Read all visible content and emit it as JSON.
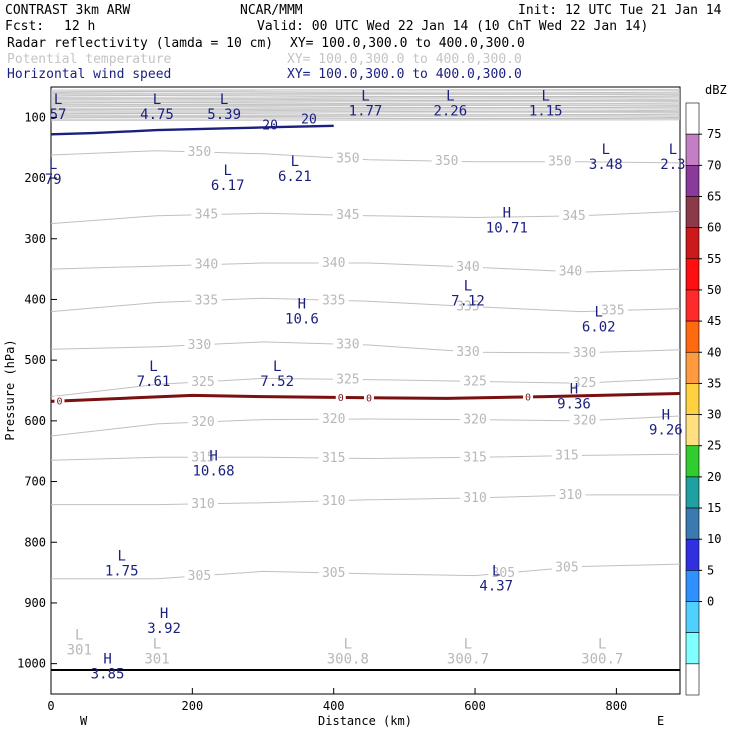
{
  "header": {
    "model": "CONTRAST  3km ARW",
    "org": "NCAR/MMM",
    "init": "Init: 12 UTC Tue 21 Jan 14",
    "fcst_label": "Fcst:",
    "fcst_value": "12 h",
    "valid": "Valid: 00 UTC Wed 22 Jan 14 (10 ChT Wed 22 Jan 14)",
    "fields": [
      {
        "name": "Radar reflectivity (lamda = 10 cm)",
        "xy": "XY= 100.0,300.0 to 400.0,300.0",
        "color": "#000000"
      },
      {
        "name": "Potential temperature",
        "xy": "XY= 100.0,300.0 to 400.0,300.0",
        "color": "#c4c4c4"
      },
      {
        "name": "Horizontal wind speed",
        "xy": "XY= 100.0,300.0 to 400.0,300.0",
        "color": "#1a1f80"
      }
    ]
  },
  "chart_data": {
    "type": "cross-section",
    "xlabel": "Distance (km)",
    "ylabel": "Pressure (hPa)",
    "xlim": [
      0,
      890
    ],
    "ylim": [
      1050,
      50
    ],
    "x_ticks": [
      "0",
      "200",
      "400",
      "600",
      "800"
    ],
    "x_tick_values": [
      0,
      200,
      400,
      600,
      800
    ],
    "y_ticks": [
      "100",
      "200",
      "300",
      "400",
      "500",
      "600",
      "700",
      "800",
      "900",
      "1000"
    ],
    "y_tick_values": [
      100,
      200,
      300,
      400,
      500,
      600,
      700,
      800,
      900,
      1000
    ],
    "x_end_labels": {
      "west": "W",
      "east": "E"
    },
    "theta_contours": [
      {
        "value": 350,
        "labels": [
          "350",
          "350",
          "350",
          "350"
        ],
        "label_x": [
          210,
          420,
          560,
          720
        ],
        "points": [
          [
            0,
            162
          ],
          [
            150,
            155
          ],
          [
            300,
            160
          ],
          [
            450,
            170
          ],
          [
            600,
            173
          ],
          [
            750,
            173
          ],
          [
            890,
            175
          ]
        ]
      },
      {
        "value": 345,
        "labels": [
          "345",
          "345",
          "345"
        ],
        "label_x": [
          220,
          420,
          740
        ],
        "points": [
          [
            0,
            275
          ],
          [
            150,
            262
          ],
          [
            300,
            258
          ],
          [
            450,
            262
          ],
          [
            600,
            265
          ],
          [
            750,
            262
          ],
          [
            890,
            255
          ]
        ]
      },
      {
        "value": 340,
        "labels": [
          "340",
          "340",
          "340",
          "340"
        ],
        "label_x": [
          220,
          400,
          590,
          735
        ],
        "points": [
          [
            0,
            350
          ],
          [
            150,
            345
          ],
          [
            300,
            340
          ],
          [
            450,
            340
          ],
          [
            600,
            347
          ],
          [
            750,
            355
          ],
          [
            890,
            350
          ]
        ]
      },
      {
        "value": 335,
        "labels": [
          "335",
          "335",
          "335",
          "335"
        ],
        "label_x": [
          220,
          400,
          590,
          795
        ],
        "points": [
          [
            0,
            420
          ],
          [
            150,
            405
          ],
          [
            300,
            398
          ],
          [
            450,
            403
          ],
          [
            600,
            412
          ],
          [
            750,
            420
          ],
          [
            890,
            415
          ]
        ]
      },
      {
        "value": 330,
        "labels": [
          "330",
          "330",
          "330",
          "330"
        ],
        "label_x": [
          210,
          420,
          590,
          755
        ],
        "points": [
          [
            0,
            482
          ],
          [
            150,
            478
          ],
          [
            300,
            470
          ],
          [
            450,
            475
          ],
          [
            600,
            487
          ],
          [
            750,
            488
          ],
          [
            890,
            483
          ]
        ]
      },
      {
        "value": 325,
        "labels": [
          "325",
          "325",
          "325",
          "325"
        ],
        "label_x": [
          215,
          420,
          600,
          755
        ],
        "points": [
          [
            0,
            560
          ],
          [
            150,
            540
          ],
          [
            300,
            530
          ],
          [
            450,
            532
          ],
          [
            600,
            535
          ],
          [
            750,
            538
          ],
          [
            890,
            530
          ]
        ]
      },
      {
        "value": 320,
        "labels": [
          "320",
          "320",
          "320",
          "320"
        ],
        "label_x": [
          215,
          400,
          600,
          755
        ],
        "points": [
          [
            0,
            625
          ],
          [
            150,
            605
          ],
          [
            300,
            598
          ],
          [
            450,
            597
          ],
          [
            600,
            598
          ],
          [
            750,
            600
          ],
          [
            890,
            592
          ]
        ]
      },
      {
        "value": 315,
        "labels": [
          "315",
          "315",
          "315",
          "315"
        ],
        "label_x": [
          215,
          400,
          600,
          730
        ],
        "points": [
          [
            0,
            665
          ],
          [
            150,
            660
          ],
          [
            300,
            660
          ],
          [
            450,
            662
          ],
          [
            600,
            660
          ],
          [
            750,
            657
          ],
          [
            890,
            655
          ]
        ]
      },
      {
        "value": 310,
        "labels": [
          "310",
          "310",
          "310",
          "310"
        ],
        "label_x": [
          215,
          400,
          600,
          735
        ],
        "points": [
          [
            0,
            738
          ],
          [
            150,
            738
          ],
          [
            300,
            735
          ],
          [
            450,
            730
          ],
          [
            600,
            727
          ],
          [
            750,
            722
          ],
          [
            890,
            722
          ]
        ]
      },
      {
        "value": 305,
        "labels": [
          "305",
          "305",
          "305",
          "305"
        ],
        "label_x": [
          210,
          400,
          640,
          730
        ],
        "points": [
          [
            0,
            860
          ],
          [
            150,
            860
          ],
          [
            300,
            848
          ],
          [
            450,
            852
          ],
          [
            600,
            855
          ],
          [
            750,
            840
          ],
          [
            890,
            836
          ]
        ]
      }
    ],
    "theta_labels_scattered": [
      "301",
      "301",
      "300.8",
      "300.7",
      "300.7"
    ],
    "highs_lows": [
      {
        "type": "L",
        "value": "57",
        "x": 10,
        "p": 78,
        "color": "navy"
      },
      {
        "type": "L",
        "value": "4.75",
        "x": 150,
        "p": 78,
        "color": "navy"
      },
      {
        "type": "L",
        "value": "5.39",
        "x": 245,
        "p": 78,
        "color": "navy"
      },
      {
        "type": "L",
        "value": "1.77",
        "x": 445,
        "p": 72,
        "color": "navy"
      },
      {
        "type": "L",
        "value": "2.26",
        "x": 565,
        "p": 72,
        "color": "navy"
      },
      {
        "type": "L",
        "value": "1.15",
        "x": 700,
        "p": 72,
        "color": "navy"
      },
      {
        "type": "L",
        "value": "3.48",
        "x": 785,
        "p": 160,
        "color": "navy"
      },
      {
        "type": "L",
        "value": "2.3",
        "x": 880,
        "p": 160,
        "color": "navy"
      },
      {
        "type": "L",
        "value": "79",
        "x": 3,
        "p": 185,
        "color": "navy"
      },
      {
        "type": "L",
        "value": "6.17",
        "x": 250,
        "p": 195,
        "color": "navy"
      },
      {
        "type": "L",
        "value": "6.21",
        "x": 345,
        "p": 180,
        "color": "navy"
      },
      {
        "type": "H",
        "value": "10.71",
        "x": 645,
        "p": 265,
        "color": "navy"
      },
      {
        "type": "L",
        "value": "7.12",
        "x": 590,
        "p": 385,
        "color": "navy"
      },
      {
        "type": "H",
        "value": "10.6",
        "x": 355,
        "p": 415,
        "color": "navy"
      },
      {
        "type": "L",
        "value": "6.02",
        "x": 775,
        "p": 428,
        "color": "navy"
      },
      {
        "type": "L",
        "value": "7.61",
        "x": 145,
        "p": 518,
        "color": "navy"
      },
      {
        "type": "L",
        "value": "7.52",
        "x": 320,
        "p": 518,
        "color": "navy"
      },
      {
        "type": "H",
        "value": "9.36",
        "x": 740,
        "p": 555,
        "color": "navy"
      },
      {
        "type": "H",
        "value": "9.26",
        "x": 870,
        "p": 598,
        "color": "navy"
      },
      {
        "type": "H",
        "value": "10.68",
        "x": 230,
        "p": 665,
        "color": "navy"
      },
      {
        "type": "L",
        "value": "1.75",
        "x": 100,
        "p": 830,
        "color": "navy"
      },
      {
        "type": "L",
        "value": "4.37",
        "x": 630,
        "p": 855,
        "color": "navy"
      },
      {
        "type": "H",
        "value": "3.92",
        "x": 160,
        "p": 925,
        "color": "navy"
      },
      {
        "type": "H",
        "value": "3.85",
        "x": 80,
        "p": 1000,
        "color": "navy"
      },
      {
        "type": "L",
        "value": "301",
        "x": 40,
        "p": 960,
        "color": "gray"
      },
      {
        "type": "L",
        "value": "301",
        "x": 150,
        "p": 975,
        "color": "gray"
      },
      {
        "type": "L",
        "value": "300.8",
        "x": 420,
        "p": 975,
        "color": "gray"
      },
      {
        "type": "L",
        "value": "300.7",
        "x": 590,
        "p": 975,
        "color": "gray"
      },
      {
        "type": "L",
        "value": "300.7",
        "x": 780,
        "p": 975,
        "color": "gray"
      }
    ],
    "wind_speed_contour": {
      "value": "20",
      "labels": [
        "20",
        "20"
      ]
    },
    "reflectivity_zero_line": {
      "value": "0",
      "labels": [
        "0",
        "0",
        "0",
        "0"
      ]
    },
    "colorbar": {
      "unit": "dBZ",
      "labels": [
        "75",
        "70",
        "65",
        "60",
        "55",
        "50",
        "45",
        "40",
        "35",
        "30",
        "25",
        "20",
        "15",
        "10",
        "5",
        "0"
      ],
      "colors": [
        "#ffffff",
        "#c47fc4",
        "#8a3a9a",
        "#8c3a4a",
        "#cc1a1a",
        "#ff1010",
        "#ff2a2a",
        "#ff6a10",
        "#ff9a40",
        "#ffd040",
        "#ffe080",
        "#30cc30",
        "#20a0a0",
        "#3a7ab0",
        "#3030e0",
        "#3090ff",
        "#50d0ff",
        "#80ffff",
        "#ffffff"
      ]
    }
  }
}
